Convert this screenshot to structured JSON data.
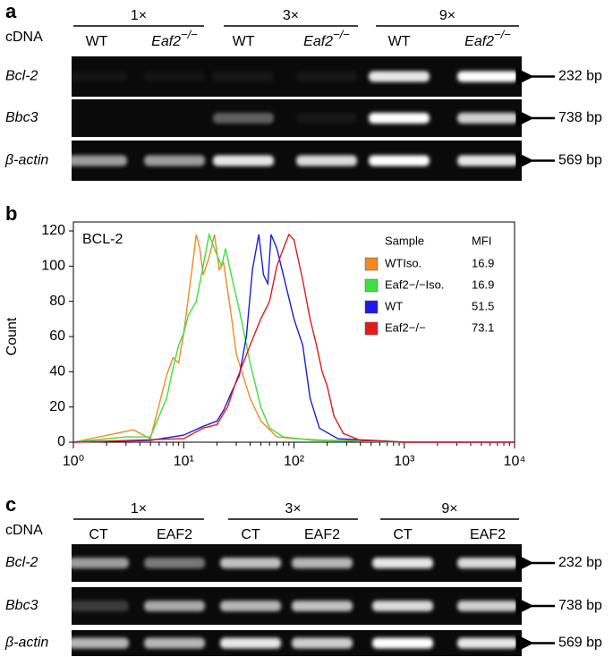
{
  "panel_a": {
    "label": "a",
    "cdna": "cDNA",
    "groups": [
      {
        "label": "1×",
        "lanes": [
          {
            "text": "WT"
          },
          {
            "text": "Eaf2",
            "sup": "−/−"
          }
        ]
      },
      {
        "label": "3×",
        "lanes": [
          {
            "text": "WT"
          },
          {
            "text": "Eaf2",
            "sup": "−/−"
          }
        ]
      },
      {
        "label": "9×",
        "lanes": [
          {
            "text": "WT"
          },
          {
            "text": "Eaf2",
            "sup": "−/−"
          }
        ]
      }
    ],
    "rows": [
      {
        "gene": "Bcl-2",
        "size": "232 bp"
      },
      {
        "gene": "Bbc3",
        "size": "738 bp"
      },
      {
        "gene": "β-actin",
        "size": "569 bp"
      }
    ]
  },
  "chart_data": {
    "type": "line",
    "panel_label": "b",
    "annotation": "BCL-2",
    "ylabel": "Count",
    "legend_header": {
      "sample": "Sample",
      "mfi": "MFI"
    },
    "xscale": "log",
    "xlim": [
      1,
      10000
    ],
    "xticks": [
      {
        "value": 1,
        "label": "10⁰"
      },
      {
        "value": 10,
        "label": "10¹"
      },
      {
        "value": 100,
        "label": "10²"
      },
      {
        "value": 1000,
        "label": "10³"
      },
      {
        "value": 10000,
        "label": "10⁴"
      }
    ],
    "ylim": [
      0,
      120
    ],
    "yticks": [
      0,
      20,
      40,
      60,
      80,
      100,
      120
    ],
    "series": [
      {
        "name": "WTIso.",
        "color": "#f08a24",
        "mfi": 16.9,
        "x": [
          1,
          3.5,
          5,
          7,
          8,
          9,
          10,
          11,
          12,
          13,
          14,
          15,
          17,
          19,
          21,
          23,
          27,
          30,
          40,
          50,
          70,
          100,
          200,
          500,
          1000
        ],
        "values": [
          0,
          7,
          2,
          38,
          48,
          45,
          62,
          82,
          100,
          118,
          110,
          95,
          105,
          118,
          98,
          102,
          72,
          50,
          25,
          12,
          3,
          2,
          1,
          1,
          0
        ]
      },
      {
        "name": "Eaf2−/−Iso.",
        "color": "#3ee03e",
        "mfi": 16.9,
        "x": [
          1,
          3,
          5,
          7,
          8,
          9,
          10,
          11,
          13,
          15,
          17,
          19,
          22,
          24,
          27,
          32,
          40,
          50,
          60,
          80,
          150,
          1000
        ],
        "values": [
          0,
          3,
          3,
          25,
          42,
          55,
          62,
          72,
          80,
          100,
          118,
          110,
          100,
          110,
          95,
          75,
          45,
          20,
          8,
          3,
          1,
          0
        ]
      },
      {
        "name": "WT",
        "color": "#1c1ce0",
        "mfi": 51.5,
        "x": [
          1,
          5,
          10,
          15,
          20,
          23,
          27,
          32,
          37,
          42,
          48,
          53,
          58,
          62,
          70,
          80,
          100,
          120,
          140,
          170,
          250,
          500,
          1000,
          10000
        ],
        "values": [
          0,
          1,
          4,
          9,
          12,
          18,
          28,
          38,
          60,
          98,
          118,
          95,
          90,
          118,
          110,
          95,
          70,
          55,
          25,
          8,
          2,
          1,
          0,
          0
        ]
      },
      {
        "name": "Eaf2−/−",
        "color": "#e01c1c",
        "mfi": 73.1,
        "x": [
          1,
          10,
          15,
          20,
          25,
          30,
          40,
          50,
          60,
          70,
          80,
          90,
          100,
          120,
          140,
          160,
          180,
          200,
          230,
          280,
          400,
          1000,
          10000
        ],
        "values": [
          0,
          2,
          8,
          10,
          20,
          35,
          55,
          70,
          80,
          100,
          110,
          118,
          115,
          92,
          70,
          55,
          40,
          32,
          15,
          5,
          1,
          0,
          0
        ]
      }
    ]
  },
  "panel_c": {
    "label": "c",
    "cdna": "cDNA",
    "groups": [
      {
        "label": "1×",
        "lanes": [
          {
            "text": "CT"
          },
          {
            "text": "EAF2"
          }
        ]
      },
      {
        "label": "3×",
        "lanes": [
          {
            "text": "CT"
          },
          {
            "text": "EAF2"
          }
        ]
      },
      {
        "label": "9×",
        "lanes": [
          {
            "text": "CT"
          },
          {
            "text": "EAF2"
          }
        ]
      }
    ],
    "rows": [
      {
        "gene": "Bcl-2",
        "size": "232 bp"
      },
      {
        "gene": "Bbc3",
        "size": "738 bp"
      },
      {
        "gene": "β-actin",
        "size": "569 bp"
      }
    ]
  }
}
